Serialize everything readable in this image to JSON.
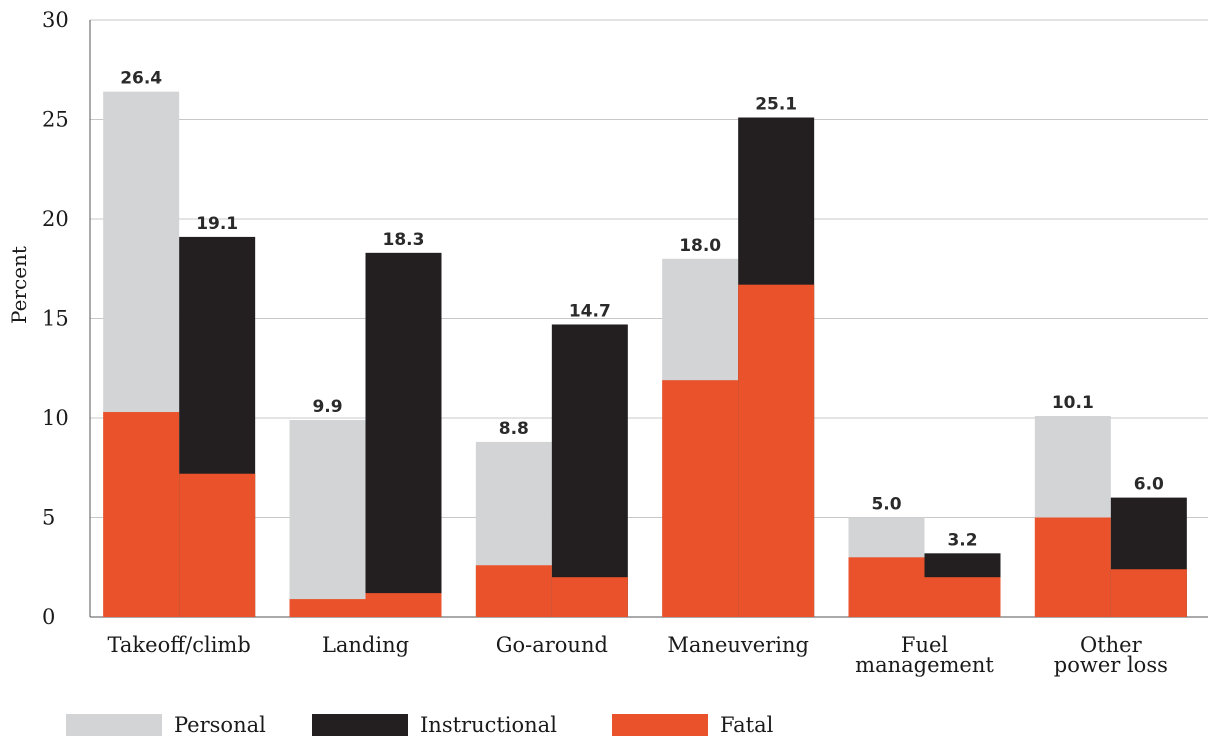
{
  "chart_data": {
    "type": "bar",
    "ylabel": "Percent",
    "ylim": [
      0,
      30
    ],
    "yticks": [
      0,
      5,
      10,
      15,
      20,
      25,
      30
    ],
    "grid": true,
    "legend_position": "bottom-left",
    "categories": [
      [
        "Takeoff/climb"
      ],
      [
        "Landing"
      ],
      [
        "Go-around"
      ],
      [
        "Maneuvering"
      ],
      [
        "Fuel",
        "management"
      ],
      [
        "Other",
        "power loss"
      ]
    ],
    "series": [
      {
        "name": "Personal",
        "color": "#d3d4d6",
        "values": [
          26.4,
          9.9,
          8.8,
          18.0,
          5.0,
          10.1
        ],
        "labels": [
          "26.4",
          "9.9",
          "8.8",
          "18.0",
          "5.0",
          "10.1"
        ],
        "fatal": [
          10.3,
          0.9,
          2.6,
          11.9,
          3.0,
          5.0
        ]
      },
      {
        "name": "Instructional",
        "color": "#231f20",
        "values": [
          19.1,
          18.3,
          14.7,
          25.1,
          3.2,
          6.0
        ],
        "labels": [
          "19.1",
          "18.3",
          "14.7",
          "25.1",
          "3.2",
          "6.0"
        ],
        "fatal": [
          7.2,
          1.2,
          2.0,
          16.7,
          2.0,
          2.4
        ]
      }
    ],
    "overlay": {
      "name": "Fatal",
      "color": "#e9522b"
    }
  }
}
